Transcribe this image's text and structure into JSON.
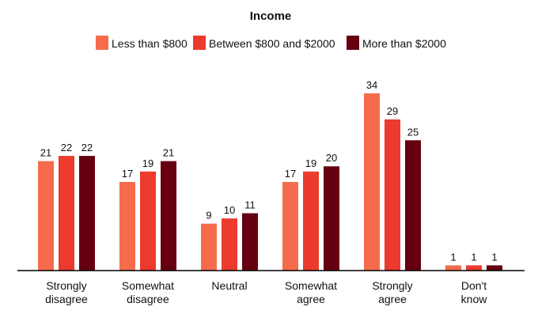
{
  "chart_data": {
    "type": "bar",
    "title": "Income",
    "categories": [
      [
        "Strongly",
        "disagree"
      ],
      [
        "Somewhat",
        "disagree"
      ],
      [
        "Neutral"
      ],
      [
        "Somewhat",
        "agree"
      ],
      [
        "Strongly",
        "agree"
      ],
      [
        "Don't",
        "know"
      ]
    ],
    "series": [
      {
        "name": "Less than $800",
        "color": "#f56b4c",
        "values": [
          21,
          17,
          9,
          17,
          34,
          1
        ]
      },
      {
        "name": "Between $800 and $2000",
        "color": "#ec3a2e",
        "values": [
          22,
          19,
          10,
          19,
          29,
          1
        ]
      },
      {
        "name": "More than $2000",
        "color": "#660011",
        "values": [
          22,
          21,
          11,
          20,
          25,
          1
        ]
      }
    ],
    "ylim": [
      0,
      34
    ],
    "legend_position": "top",
    "grid": false
  }
}
